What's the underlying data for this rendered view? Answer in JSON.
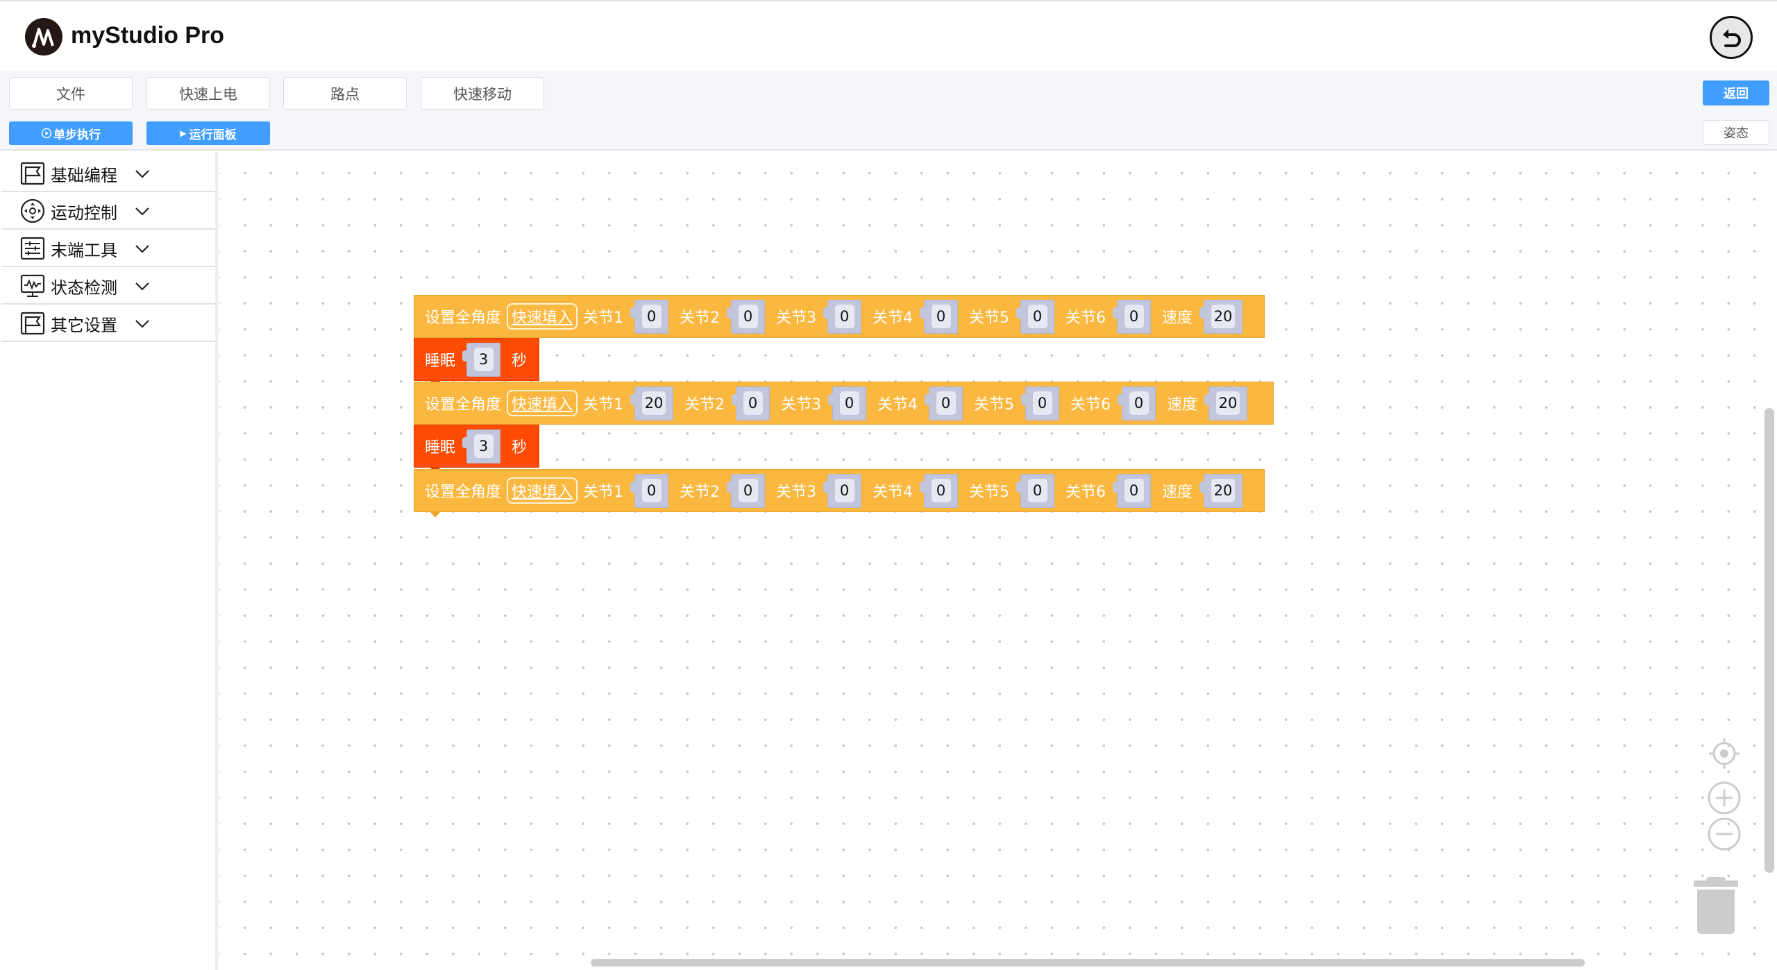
{
  "header": {
    "title": "myStudio Pro",
    "undo_icon": "undo-icon"
  },
  "toolbar": {
    "menu": [
      "文件",
      "快速上电",
      "路点",
      "快速移动"
    ],
    "step_label": "单步执行",
    "run_panel_label": "运行面板",
    "back_label": "返回",
    "pose_label": "姿态",
    "accent": "#409eff"
  },
  "sidebar": {
    "items": [
      {
        "label": "基础编程",
        "icon": "flag-icon"
      },
      {
        "label": "运动控制",
        "icon": "dpad-icon"
      },
      {
        "label": "末端工具",
        "icon": "sliders-icon"
      },
      {
        "label": "状态检测",
        "icon": "monitor-pulse-icon"
      },
      {
        "label": "其它设置",
        "icon": "flag-icon"
      }
    ]
  },
  "blocks": [
    {
      "type": "move",
      "title": "设置全角度",
      "quick": "快速填入",
      "joints": [
        {
          "label": "关节1",
          "value": "0"
        },
        {
          "label": "关节2",
          "value": "0"
        },
        {
          "label": "关节3",
          "value": "0"
        },
        {
          "label": "关节4",
          "value": "0"
        },
        {
          "label": "关节5",
          "value": "0"
        },
        {
          "label": "关节6",
          "value": "0"
        }
      ],
      "speed_label": "速度",
      "speed": "20"
    },
    {
      "type": "sleep",
      "title": "睡眠",
      "value": "3",
      "unit": "秒"
    },
    {
      "type": "move",
      "title": "设置全角度",
      "quick": "快速填入",
      "joints": [
        {
          "label": "关节1",
          "value": "20"
        },
        {
          "label": "关节2",
          "value": "0"
        },
        {
          "label": "关节3",
          "value": "0"
        },
        {
          "label": "关节4",
          "value": "0"
        },
        {
          "label": "关节5",
          "value": "0"
        },
        {
          "label": "关节6",
          "value": "0"
        }
      ],
      "speed_label": "速度",
      "speed": "20"
    },
    {
      "type": "sleep",
      "title": "睡眠",
      "value": "3",
      "unit": "秒"
    },
    {
      "type": "move",
      "title": "设置全角度",
      "quick": "快速填入",
      "joints": [
        {
          "label": "关节1",
          "value": "0"
        },
        {
          "label": "关节2",
          "value": "0"
        },
        {
          "label": "关节3",
          "value": "0"
        },
        {
          "label": "关节4",
          "value": "0"
        },
        {
          "label": "关节5",
          "value": "0"
        },
        {
          "label": "关节6",
          "value": "0"
        }
      ],
      "speed_label": "速度",
      "speed": "20"
    }
  ],
  "colors": {
    "move_block": "#fbb840",
    "sleep_block": "#fe4b03",
    "slot": "#c2c6dd"
  }
}
